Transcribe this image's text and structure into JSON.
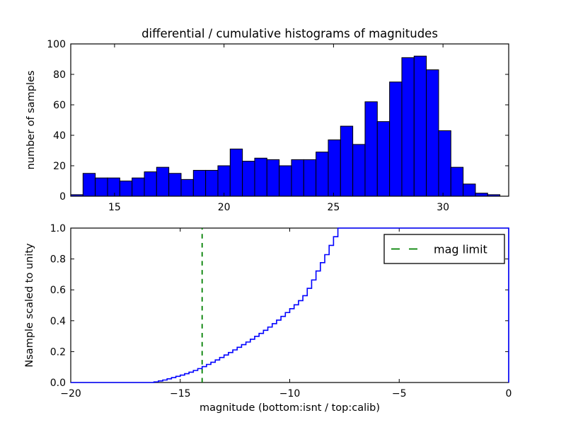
{
  "figure_title": "differential / cumulative histograms of magnitudes",
  "colors": {
    "background": "#ffffff",
    "axes": "#000000",
    "bar_fill": "#0000ff",
    "bar_edge": "#000000",
    "step_line": "#0000ff",
    "mag_limit_line": "#008000"
  },
  "chart_data": [
    {
      "type": "bar",
      "subtype": "differential-histogram",
      "title": "differential / cumulative histograms of magnitudes",
      "xlabel": "",
      "ylabel": "number of samples",
      "xlim": [
        13,
        33
      ],
      "ylim": [
        0,
        100
      ],
      "grid": false,
      "xticks": {
        "values": [
          15,
          20,
          25,
          30
        ],
        "labels": [
          "15",
          "20",
          "25",
          "30"
        ]
      },
      "yticks": {
        "values": [
          0,
          20,
          40,
          60,
          80,
          100
        ],
        "labels": [
          "0",
          "20",
          "40",
          "60",
          "80",
          "100"
        ]
      },
      "bin_start": 13.0,
      "bin_width": 0.56,
      "values": [
        1,
        15,
        12,
        12,
        10,
        12,
        16,
        19,
        15,
        11,
        17,
        17,
        20,
        31,
        23,
        25,
        24,
        20,
        24,
        24,
        29,
        37,
        46,
        34,
        62,
        49,
        75,
        91,
        92,
        83,
        43,
        19,
        8,
        2,
        1
      ]
    },
    {
      "type": "line",
      "subtype": "cumulative-step-histogram",
      "xlabel": "magnitude (bottom:isnt / top:calib)",
      "ylabel": "Nsample scaled to unity",
      "xlim": [
        -20,
        0
      ],
      "ylim": [
        0,
        1
      ],
      "grid": false,
      "xticks": {
        "values": [
          -20,
          -15,
          -10,
          -5,
          0
        ],
        "labels": [
          "−20",
          "−15",
          "−10",
          "−5",
          "0"
        ]
      },
      "yticks": {
        "values": [
          0,
          0.2,
          0.4,
          0.6,
          0.8,
          1
        ],
        "labels": [
          "0.0",
          "0.2",
          "0.4",
          "0.6",
          "0.8",
          "1.0"
        ]
      },
      "steps": [
        [
          -16.2,
          0.004
        ],
        [
          -16.0,
          0.01
        ],
        [
          -15.8,
          0.016
        ],
        [
          -15.6,
          0.024
        ],
        [
          -15.4,
          0.032
        ],
        [
          -15.2,
          0.04
        ],
        [
          -15.0,
          0.048
        ],
        [
          -14.8,
          0.057
        ],
        [
          -14.6,
          0.067
        ],
        [
          -14.4,
          0.078
        ],
        [
          -14.2,
          0.09
        ],
        [
          -14.0,
          0.103
        ],
        [
          -13.8,
          0.117
        ],
        [
          -13.6,
          0.131
        ],
        [
          -13.4,
          0.146
        ],
        [
          -13.2,
          0.162
        ],
        [
          -13.0,
          0.178
        ],
        [
          -12.8,
          0.194
        ],
        [
          -12.6,
          0.211
        ],
        [
          -12.4,
          0.228
        ],
        [
          -12.2,
          0.245
        ],
        [
          -12.0,
          0.262
        ],
        [
          -11.8,
          0.28
        ],
        [
          -11.6,
          0.299
        ],
        [
          -11.4,
          0.318
        ],
        [
          -11.2,
          0.338
        ],
        [
          -11.0,
          0.359
        ],
        [
          -10.8,
          0.381
        ],
        [
          -10.6,
          0.404
        ],
        [
          -10.4,
          0.428
        ],
        [
          -10.2,
          0.453
        ],
        [
          -10.0,
          0.478
        ],
        [
          -9.8,
          0.503
        ],
        [
          -9.6,
          0.53
        ],
        [
          -9.4,
          0.562
        ],
        [
          -9.2,
          0.61
        ],
        [
          -9.0,
          0.664
        ],
        [
          -8.8,
          0.722
        ],
        [
          -8.6,
          0.776
        ],
        [
          -8.4,
          0.828
        ],
        [
          -8.2,
          0.888
        ],
        [
          -8.0,
          0.944
        ],
        [
          -7.8,
          1.0
        ]
      ],
      "flat_end_x": 0,
      "mag_limit": {
        "x": -14,
        "linestyle": "dashed"
      },
      "legend": {
        "label": "mag limit",
        "position": "upper right"
      }
    }
  ]
}
